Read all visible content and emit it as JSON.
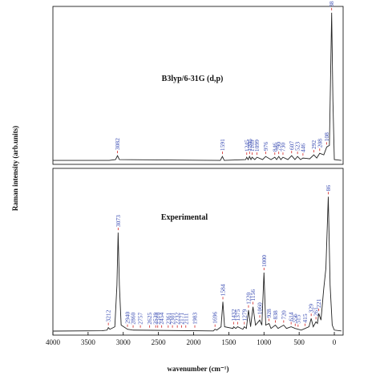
{
  "chart_data": [
    {
      "type": "line",
      "title": "B3lyp/6-31G (d,p)",
      "ylabel": "Raman intensity (arb.units)",
      "color": "#222222",
      "x": [
        4000,
        3200,
        3110,
        3082,
        3055,
        1620,
        1591,
        1565,
        1260,
        1245,
        1225,
        1205,
        1185,
        1169,
        1130,
        1099,
        1020,
        976,
        900,
        846,
        820,
        790,
        760,
        730,
        660,
        607,
        560,
        523,
        480,
        446,
        350,
        292,
        250,
        208,
        150,
        108,
        70,
        38,
        20,
        0,
        -100
      ],
      "values": [
        2.5,
        2.5,
        3,
        5.5,
        3,
        2.5,
        5,
        2.5,
        3,
        4.5,
        3,
        5,
        3,
        4.5,
        3,
        4.5,
        3,
        5,
        3,
        4.5,
        3,
        5,
        3,
        4.5,
        3,
        5.5,
        3,
        5,
        3,
        4,
        3.5,
        6,
        4,
        7,
        6,
        11,
        12,
        96,
        40,
        3,
        2.5
      ],
      "peak_labels": [
        3082,
        1591,
        1245,
        1205,
        1169,
        1099,
        976,
        846,
        790,
        730,
        607,
        523,
        446,
        292,
        208,
        108,
        38
      ],
      "xlim": [
        4000,
        -125
      ],
      "ylim": [
        0,
        100
      ]
    },
    {
      "type": "line",
      "title": "Experimental",
      "xlabel": "wavenumber (cm⁻¹)",
      "color": "#222222",
      "x": [
        4000,
        3300,
        3230,
        3212,
        3190,
        3120,
        3090,
        3073,
        3055,
        3030,
        2940,
        2860,
        1720,
        1696,
        1670,
        1610,
        1584,
        1560,
        1440,
        1432,
        1400,
        1375,
        1300,
        1279,
        1250,
        1220,
        1190,
        1156,
        1120,
        1060,
        1030,
        1000,
        975,
        928,
        900,
        838,
        800,
        720,
        680,
        614,
        556,
        515,
        470,
        415,
        360,
        329,
        300,
        261,
        240,
        221,
        190,
        150,
        120,
        86,
        60,
        30,
        0,
        -100
      ],
      "values": [
        2.4,
        2.6,
        3,
        4.5,
        3.5,
        5,
        30,
        61.5,
        30,
        6,
        3.5,
        3,
        2.5,
        3.5,
        3,
        5,
        20,
        5,
        4,
        5,
        4,
        5,
        3.5,
        5,
        4,
        15,
        5,
        17,
        6,
        9,
        6,
        37.5,
        6,
        7,
        4,
        6,
        4,
        6,
        4,
        5,
        4,
        3.5,
        3,
        4,
        5,
        10,
        5,
        8,
        7,
        13,
        9,
        28,
        40,
        83,
        30,
        6,
        3,
        2.5
      ],
      "peak_labels": [
        3212,
        3073,
        2940,
        2860,
        2757,
        2625,
        2539,
        2510,
        2454,
        2361,
        2301,
        2232,
        2171,
        2111,
        1983,
        1696,
        1584,
        1432,
        1375,
        1279,
        1220,
        1156,
        1060,
        1000,
        928,
        838,
        720,
        614,
        556,
        515,
        415,
        329,
        261,
        221,
        86
      ],
      "xlim": [
        4000,
        -125
      ],
      "ylim": [
        0,
        100
      ],
      "xticks": [
        4000,
        3500,
        3000,
        2500,
        2000,
        1500,
        1000,
        500,
        0
      ]
    }
  ]
}
